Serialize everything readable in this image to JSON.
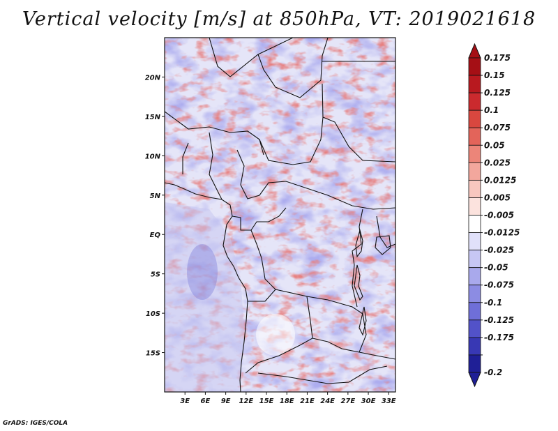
{
  "title": "Vertical velocity [m/s] at 850hPa, VT: 2019021618",
  "credit": "GrADS: IGES/COLA",
  "map": {
    "projection": "lat-lon",
    "lon_range": [
      0,
      34
    ],
    "lat_range": [
      -20,
      25
    ],
    "lon_ticks": [
      {
        "value": 3,
        "label": "3E"
      },
      {
        "value": 6,
        "label": "6E"
      },
      {
        "value": 9,
        "label": "9E"
      },
      {
        "value": 12,
        "label": "12E"
      },
      {
        "value": 15,
        "label": "15E"
      },
      {
        "value": 18,
        "label": "18E"
      },
      {
        "value": 21,
        "label": "21E"
      },
      {
        "value": 24,
        "label": "24E"
      },
      {
        "value": 27,
        "label": "27E"
      },
      {
        "value": 30,
        "label": "30E"
      },
      {
        "value": 33,
        "label": "33E"
      }
    ],
    "lat_ticks": [
      {
        "value": 20,
        "label": "20N"
      },
      {
        "value": 15,
        "label": "15N"
      },
      {
        "value": 10,
        "label": "10N"
      },
      {
        "value": 5,
        "label": "5N"
      },
      {
        "value": 0,
        "label": "EQ"
      },
      {
        "value": -5,
        "label": "5S"
      },
      {
        "value": -10,
        "label": "10S"
      },
      {
        "value": -15,
        "label": "15S"
      }
    ]
  },
  "colorbar": {
    "levels": [
      {
        "label": "0.175",
        "color": "#a50f15"
      },
      {
        "label": "0.15",
        "color": "#b8191f"
      },
      {
        "label": "0.125",
        "color": "#cb2a2e"
      },
      {
        "label": "0.1",
        "color": "#d9473f"
      },
      {
        "label": "0.075",
        "color": "#e3645a"
      },
      {
        "label": "0.05",
        "color": "#ec8579"
      },
      {
        "label": "0.025",
        "color": "#f3a79d"
      },
      {
        "label": "0.0125",
        "color": "#f8c7bf"
      },
      {
        "label": "0.005",
        "color": "#fce3de"
      },
      {
        "label": "-0.005",
        "color": "#ffffff"
      },
      {
        "label": "-0.0125",
        "color": "#e1e1fa"
      },
      {
        "label": "-0.025",
        "color": "#c7c7f4"
      },
      {
        "label": "-0.05",
        "color": "#a9a9ec"
      },
      {
        "label": "-0.075",
        "color": "#8c8ce3"
      },
      {
        "label": "-0.1",
        "color": "#6f6fd8"
      },
      {
        "label": "-0.125",
        "color": "#5252c9"
      },
      {
        "label": "-0.175",
        "color": "#3838b4"
      },
      {
        "label": "-0.2",
        "color": "#1f1f96"
      }
    ],
    "top_arrow_color": "#a50f15",
    "bottom_arrow_color": "#1f1f96"
  }
}
